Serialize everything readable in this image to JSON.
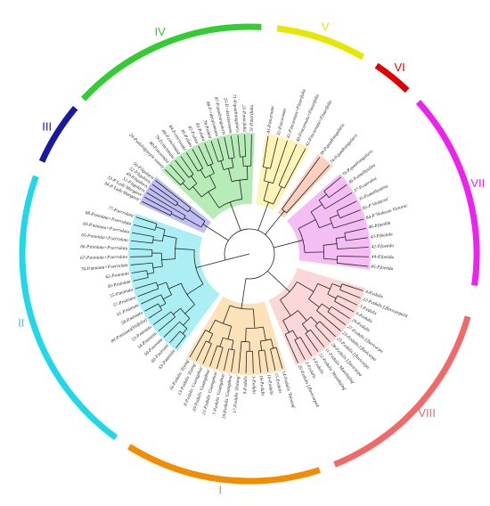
{
  "clades": [
    {
      "label": "II",
      "color": "#22d8e8",
      "shade": "#8fe9f0",
      "leaves": [
        "63-P.miniata",
        "60-P.miniata",
        "59-P.miniata",
        "54-P.miniata",
        "53-P.miniata",
        "84-P.miniata(Vitifolia)",
        "58-P.miniata",
        "61-P.miniata",
        "57-P.miniata",
        "55-P.miniata",
        "56-P.miniata",
        "62-P.miniata",
        "70-P.miniata×P.serrulata",
        "67-P.miniata×P.serrulata",
        "66-P.miniata×P.serrulata",
        "65-P.miniata×P.serrulata",
        "69-P.miniata×P.serrulata",
        "68-P.miniata×P.serrulata",
        "77-P.serrulata"
      ]
    },
    {
      "label": "III",
      "color": "#1a1aa0",
      "shade": "#a8a8f0",
      "leaves": [
        "34-P.'Lady Margaret'",
        "33-P.'Lady Margaret'",
        "51-P.ligularis",
        "49-P.ligularis",
        "52-P.ligularis",
        "50-P.ligularis"
      ]
    },
    {
      "label": "IV",
      "color": "#33cc33",
      "shade": "#9fe6a0",
      "leaves": [
        "24-P.edulis(purple sweet)",
        "80-P.incarnata",
        "79-P.cincinnata",
        "89-P.cincinnata",
        "84-P.cincinnata",
        "85-P.alata",
        "82-P.alata",
        "83-P.alata",
        "78-P.alata",
        "86-P.×decaisneana",
        "87-P.quadrangularis",
        "25-P.×decaisneana",
        "71-P.quadrangularis",
        "21-P.morifolia",
        "31-P.morifolia"
      ]
    },
    {
      "label": "V",
      "color": "#e6e600",
      "shade": "#fff0a0",
      "leaves": [
        "43-P.incarnata",
        "32-P.incarnata",
        "41-P.incarnata×P.laurifolia",
        "40-P.incarnata×P.laurifolia",
        "42-P.incarnata×P.laurifolia"
      ]
    },
    {
      "label": "VI",
      "color": "#e00000",
      "shade": "#f9c0a8",
      "leaves": [
        "39-P.quadrangularis",
        "74-P.quadrangularis"
      ]
    },
    {
      "label": "VII",
      "color": "#ee22ee",
      "shade": "#f0a8f0",
      "leaves": [
        "76-P.quadrangularis",
        "36-P.amethystina",
        "37-P.caerulea",
        "35-P.amethystina",
        "85-P.'Violacea'",
        "84-P.'Violacea Victoria'",
        "46-P.foetida",
        "43-P.foetida",
        "42-P.foetida",
        "44-P.foetida",
        "45-P.foetida"
      ]
    },
    {
      "label": "VIII",
      "color": "#f06a6a",
      "shade": "#f9c9c9",
      "leaves": [
        "4-P.edulis",
        "22-P.edulis f.flavicarpa16",
        "5-P.edulis",
        "6-P.edulis",
        "29-P.edulis",
        "27-P.edulis f.flavicarpa",
        "23-P.edulis f.flavicarpa",
        "25-P.edulis f.flavicarpa",
        "28-P.edulis f.flavicarpa",
        "11-P.edulis 'Manshijing'",
        "12-P.edulis 'Manshijing'",
        "3-P.edulis",
        "2-P.edulis",
        "26-P.edulis f.flavicarpa4"
      ]
    },
    {
      "label": "I",
      "color": "#f28c00",
      "shade": "#f9d8a0",
      "leaves": [
        "14-P.edulis 'Tainong'",
        "15-P.edulis",
        "10-P.edulis",
        "18-P.edulis",
        "1-P.edulis",
        "9-P.edulis",
        "17-P.edulis 'Zixiang'",
        "19-P.edulis 'Guangzhou'",
        "7-P.edulis 'Guangzhou'",
        "21-P.edulis 'Guangzhou'",
        "20-P.edulis 'Guangzhou'",
        "8-P.edulis 'Guangzhou'",
        "13-P.edulis 'Ziying'",
        "16-P.edulis 'Ziying'"
      ]
    }
  ]
}
